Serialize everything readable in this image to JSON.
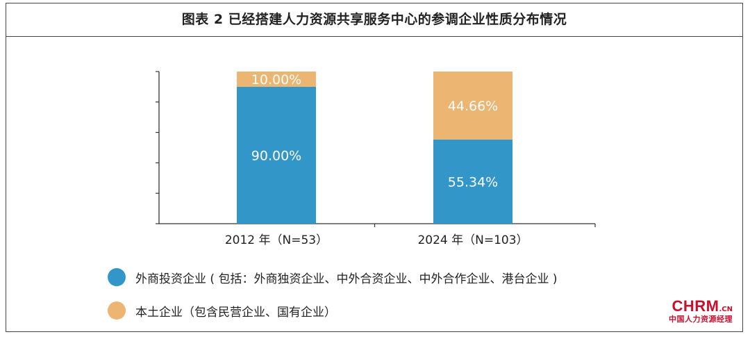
{
  "title": "图表 2 已经搭建人力资源共享服务中心的参调企业性质分布情况",
  "colors": {
    "foreign": "#3396c9",
    "local": "#edb572",
    "axis": "#333333"
  },
  "chart_data": {
    "type": "bar",
    "stacked": true,
    "normalized": true,
    "categories": [
      "2012 年（N=53）",
      "2024 年（N=103）"
    ],
    "series": [
      {
        "name": "外商投资企业 ( 包括：外商独资企业、中外合资企业、中外合作企业、港台企业 )",
        "values": [
          90.0,
          55.34
        ],
        "labels": [
          "90.00%",
          "55.34%"
        ],
        "color": "#3396c9"
      },
      {
        "name": "本土企业（包含民营企业、国有企业）",
        "values": [
          10.0,
          44.66
        ],
        "labels": [
          "10.00%",
          "44.66%"
        ],
        "color": "#edb572"
      }
    ],
    "ylim": [
      0,
      100
    ],
    "grid": false,
    "legend_position": "bottom-left"
  },
  "legend": [
    {
      "label": "外商投资企业 ( 包括：外商独资企业、中外合资企业、中外合作企业、港台企业 )",
      "color": "#3396c9"
    },
    {
      "label": "本土企业（包含民营企业、国有企业）",
      "color": "#edb572"
    }
  ],
  "watermark": {
    "main": "CHRM",
    "suffix": ".CN",
    "sub": "中国人力资源经理"
  }
}
